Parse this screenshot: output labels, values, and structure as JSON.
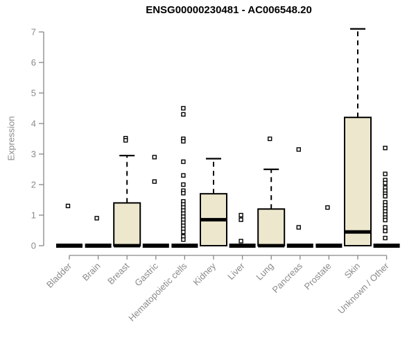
{
  "title": "ENSG00000230481 - AC006548.20",
  "y_axis_label": "Expression",
  "colors": {
    "box_fill": "#ede7cd",
    "box_stroke": "#000000",
    "median": "#000000",
    "outlier_fill": "#ffffff",
    "outlier_stroke": "#000000",
    "axis_line": "#878787",
    "tick_label": "#8a8a8a",
    "title_text": "#000000",
    "background": "#ffffff"
  },
  "chart_data": {
    "type": "boxplot",
    "title": "ENSG00000230481 - AC006548.20",
    "xlabel": "",
    "ylabel": "Expression",
    "ylim": [
      0,
      7
    ],
    "yticks": [
      0,
      1,
      2,
      3,
      4,
      5,
      6,
      7
    ],
    "grid": false,
    "legend": "none",
    "x_tick_rotation_deg": 45,
    "categories": [
      "Bladder",
      "Brain",
      "Breast",
      "Gastric",
      "Hematopoietic cells",
      "Kidney",
      "Liver",
      "Lung",
      "Pancreas",
      "Prostate",
      "Skin",
      "Unknown / Other"
    ],
    "series": [
      {
        "category": "Bladder",
        "q1": 0,
        "median": 0,
        "q3": 0,
        "whisker_low": 0,
        "whisker_high": 0,
        "outliers": [
          1.3
        ]
      },
      {
        "category": "Brain",
        "q1": 0,
        "median": 0,
        "q3": 0,
        "whisker_low": 0,
        "whisker_high": 0,
        "outliers": [
          0.9
        ]
      },
      {
        "category": "Breast",
        "q1": 0,
        "median": 0,
        "q3": 1.4,
        "whisker_low": 0,
        "whisker_high": 2.95,
        "outliers": [
          3.52,
          3.45
        ]
      },
      {
        "category": "Gastric",
        "q1": 0,
        "median": 0,
        "q3": 0,
        "whisker_low": 0,
        "whisker_high": 0,
        "outliers": [
          2.9,
          2.1
        ]
      },
      {
        "category": "Hematopoietic cells",
        "q1": 0,
        "median": 0,
        "q3": 0,
        "whisker_low": 0,
        "whisker_high": 0,
        "outliers": [
          4.5,
          4.3,
          3.5,
          3.42,
          2.75,
          2.3,
          2.0,
          1.8,
          1.72,
          1.45,
          1.35,
          1.25,
          1.15,
          1.05,
          0.95,
          0.85,
          0.75,
          0.65,
          0.55,
          0.45,
          0.3,
          0.2
        ]
      },
      {
        "category": "Kidney",
        "q1": 0,
        "median": 0.85,
        "q3": 1.7,
        "whisker_low": 0,
        "whisker_high": 2.85,
        "outliers": []
      },
      {
        "category": "Liver",
        "q1": 0,
        "median": 0,
        "q3": 0,
        "whisker_low": 0,
        "whisker_high": 0,
        "outliers": [
          1.0,
          0.85,
          0.15
        ]
      },
      {
        "category": "Lung",
        "q1": 0,
        "median": 0,
        "q3": 1.2,
        "whisker_low": 0,
        "whisker_high": 2.5,
        "outliers": [
          3.5
        ]
      },
      {
        "category": "Pancreas",
        "q1": 0,
        "median": 0,
        "q3": 0,
        "whisker_low": 0,
        "whisker_high": 0,
        "outliers": [
          3.15,
          0.6
        ]
      },
      {
        "category": "Prostate",
        "q1": 0,
        "median": 0,
        "q3": 0,
        "whisker_low": 0,
        "whisker_high": 0,
        "outliers": [
          1.25
        ]
      },
      {
        "category": "Skin",
        "q1": 0,
        "median": 0.45,
        "q3": 4.2,
        "whisker_low": 0,
        "whisker_high": 7.1,
        "outliers": []
      },
      {
        "category": "Unknown / Other",
        "q1": 0,
        "median": 0,
        "q3": 0,
        "whisker_low": 0,
        "whisker_high": 0,
        "outliers": [
          3.2,
          2.35,
          2.15,
          2.05,
          1.9,
          1.8,
          1.7,
          1.62,
          1.42,
          1.32,
          1.22,
          1.12,
          1.02,
          0.92,
          0.84,
          0.6,
          0.48,
          0.25
        ]
      }
    ]
  }
}
